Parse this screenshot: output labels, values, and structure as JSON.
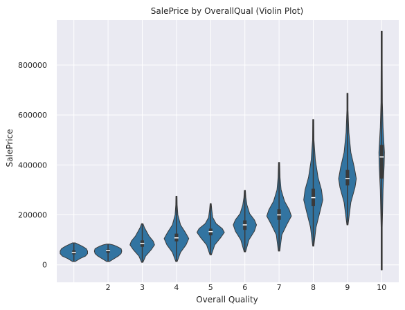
{
  "chart_data": {
    "type": "violin",
    "title": "SalePrice by OverallQual (Violin Plot)",
    "xlabel": "Overall Quality",
    "ylabel": "SalePrice",
    "categories": [
      "1",
      "2",
      "3",
      "4",
      "5",
      "6",
      "7",
      "8",
      "9",
      "10"
    ],
    "x_tick_labels": [
      "",
      "2",
      "3",
      "4",
      "5",
      "6",
      "7",
      "8",
      "9",
      "10"
    ],
    "ylim": [
      -70000,
      980000
    ],
    "y_ticks": [
      0,
      200000,
      400000,
      600000,
      800000
    ],
    "y_tick_labels": [
      "0",
      "200000",
      "400000",
      "600000",
      "800000"
    ],
    "grid": true,
    "colors": {
      "background": "#EAEAF2",
      "grid": "#FFFFFF",
      "violin_fill": "#3274A1",
      "violin_edge": "#3A3A3A",
      "box": "#3A3A3A",
      "median": "#FFFFFF"
    },
    "violins": [
      {
        "category": "1",
        "min": 13000,
        "q1": 42000,
        "median": 50000,
        "q3": 58000,
        "max": 88000,
        "profile": [
          [
            13000,
            0.1
          ],
          [
            25000,
            0.45
          ],
          [
            35000,
            0.85
          ],
          [
            45000,
            1.0
          ],
          [
            55000,
            1.0
          ],
          [
            65000,
            0.9
          ],
          [
            75000,
            0.6
          ],
          [
            83000,
            0.3
          ],
          [
            88000,
            0.1
          ]
        ]
      },
      {
        "category": "2",
        "min": 13000,
        "q1": 48000,
        "median": 57000,
        "q3": 62000,
        "max": 83000,
        "profile": [
          [
            13000,
            0.1
          ],
          [
            25000,
            0.45
          ],
          [
            35000,
            0.75
          ],
          [
            45000,
            0.95
          ],
          [
            55000,
            1.0
          ],
          [
            65000,
            0.95
          ],
          [
            75000,
            0.6
          ],
          [
            80000,
            0.35
          ],
          [
            83000,
            0.1
          ]
        ]
      },
      {
        "category": "3",
        "min": 10000,
        "q1": 72000,
        "median": 86000,
        "q3": 98000,
        "max": 165000,
        "profile": [
          [
            10000,
            0.05
          ],
          [
            35000,
            0.25
          ],
          [
            60000,
            0.65
          ],
          [
            80000,
            0.9
          ],
          [
            95000,
            0.8
          ],
          [
            115000,
            0.5
          ],
          [
            135000,
            0.3
          ],
          [
            150000,
            0.15
          ],
          [
            165000,
            0.05
          ]
        ]
      },
      {
        "category": "4",
        "min": 13000,
        "q1": 94000,
        "median": 108000,
        "q3": 125000,
        "max": 275000,
        "profile": [
          [
            13000,
            0.05
          ],
          [
            50000,
            0.3
          ],
          [
            80000,
            0.7
          ],
          [
            105000,
            0.9
          ],
          [
            130000,
            0.65
          ],
          [
            160000,
            0.3
          ],
          [
            200000,
            0.1
          ],
          [
            240000,
            0.05
          ],
          [
            275000,
            0.03
          ]
        ]
      },
      {
        "category": "5",
        "min": 40000,
        "q1": 118000,
        "median": 133000,
        "q3": 145000,
        "max": 245000,
        "profile": [
          [
            40000,
            0.05
          ],
          [
            80000,
            0.3
          ],
          [
            110000,
            0.75
          ],
          [
            130000,
            1.0
          ],
          [
            145000,
            0.85
          ],
          [
            165000,
            0.4
          ],
          [
            190000,
            0.15
          ],
          [
            220000,
            0.08
          ],
          [
            245000,
            0.03
          ]
        ]
      },
      {
        "category": "6",
        "min": 52000,
        "q1": 140000,
        "median": 160000,
        "q3": 178000,
        "max": 298000,
        "profile": [
          [
            52000,
            0.05
          ],
          [
            100000,
            0.3
          ],
          [
            135000,
            0.7
          ],
          [
            160000,
            0.85
          ],
          [
            180000,
            0.7
          ],
          [
            205000,
            0.35
          ],
          [
            240000,
            0.15
          ],
          [
            270000,
            0.07
          ],
          [
            298000,
            0.03
          ]
        ]
      },
      {
        "category": "7",
        "min": 55000,
        "q1": 180000,
        "median": 200000,
        "q3": 223000,
        "max": 410000,
        "profile": [
          [
            55000,
            0.05
          ],
          [
            120000,
            0.2
          ],
          [
            165000,
            0.6
          ],
          [
            195000,
            0.9
          ],
          [
            220000,
            0.75
          ],
          [
            255000,
            0.4
          ],
          [
            300000,
            0.15
          ],
          [
            350000,
            0.07
          ],
          [
            410000,
            0.03
          ]
        ]
      },
      {
        "category": "8",
        "min": 75000,
        "q1": 235000,
        "median": 269000,
        "q3": 305000,
        "max": 582000,
        "profile": [
          [
            75000,
            0.04
          ],
          [
            150000,
            0.2
          ],
          [
            215000,
            0.5
          ],
          [
            260000,
            0.7
          ],
          [
            300000,
            0.6
          ],
          [
            350000,
            0.35
          ],
          [
            420000,
            0.15
          ],
          [
            500000,
            0.05
          ],
          [
            582000,
            0.02
          ]
        ]
      },
      {
        "category": "9",
        "min": 160000,
        "q1": 318000,
        "median": 345000,
        "q3": 380000,
        "max": 687000,
        "profile": [
          [
            160000,
            0.04
          ],
          [
            250000,
            0.25
          ],
          [
            310000,
            0.55
          ],
          [
            345000,
            0.65
          ],
          [
            390000,
            0.5
          ],
          [
            450000,
            0.25
          ],
          [
            530000,
            0.1
          ],
          [
            620000,
            0.04
          ],
          [
            687000,
            0.02
          ]
        ]
      },
      {
        "category": "10",
        "min": -20000,
        "q1": 345000,
        "median": 432000,
        "q3": 480000,
        "max": 935000,
        "profile": [
          [
            -20000,
            0.02
          ],
          [
            150000,
            0.04
          ],
          [
            300000,
            0.1
          ],
          [
            400000,
            0.18
          ],
          [
            450000,
            0.2
          ],
          [
            550000,
            0.1
          ],
          [
            650000,
            0.05
          ],
          [
            800000,
            0.02
          ],
          [
            935000,
            0.02
          ]
        ]
      }
    ]
  }
}
